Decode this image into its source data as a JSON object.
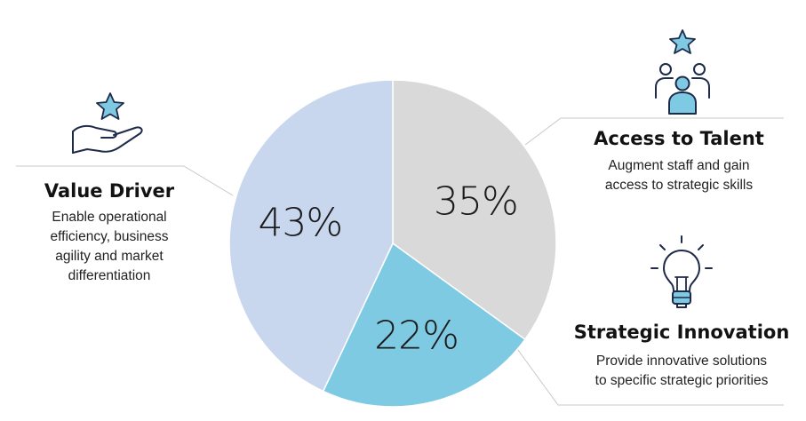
{
  "chart_data": {
    "type": "pie",
    "slices": [
      {
        "label": "Access to Talent",
        "value": 35,
        "display": "35%",
        "color": "#d9d9d9"
      },
      {
        "label": "Strategic Innovation",
        "value": 22,
        "display": "22%",
        "color": "#7fcae3"
      },
      {
        "label": "Value Driver",
        "value": 43,
        "display": "43%",
        "color": "#c9d7ee"
      }
    ]
  },
  "callouts": {
    "value_driver": {
      "title": "Value Driver",
      "lines": [
        "Enable operational",
        "efficiency, business",
        "agility and market",
        "differentiation"
      ]
    },
    "access_talent": {
      "title": "Access to Talent",
      "lines": [
        "Augment staff and gain",
        "access to strategic skills"
      ]
    },
    "strategic_innovation": {
      "title": "Strategic Innovation",
      "lines": [
        "Provide innovative solutions",
        "to specific strategic priorities"
      ]
    }
  },
  "icons": {
    "value_driver": "hand-star-icon",
    "access_talent": "people-star-icon",
    "strategic_innovation": "lightbulb-icon"
  },
  "colors": {
    "accent": "#7fcae3",
    "line": "#c8c8c8",
    "icon_stroke": "#1e2a4a"
  }
}
